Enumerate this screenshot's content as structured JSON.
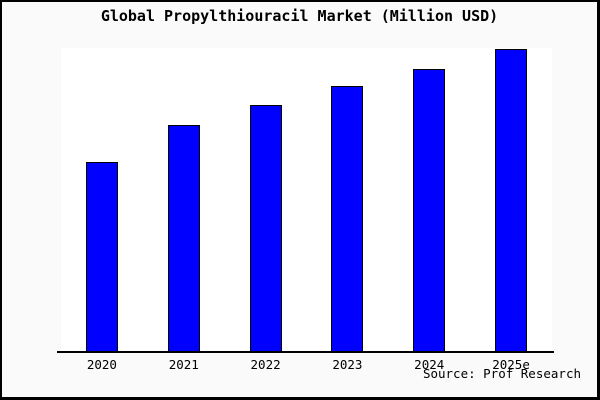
{
  "window": {
    "title": "Global Propylthiouracil Market (Million USD)"
  },
  "chart_data": {
    "type": "bar",
    "title": "Global Propylthiouracil Market (Million USD)",
    "categories": [
      "2020",
      "2021",
      "2022",
      "2023",
      "2024",
      "2025e"
    ],
    "values": [
      62.7,
      74.9,
      81.2,
      87.5,
      93.4,
      99.8
    ],
    "values_note": "y-axis has no tick labels; values are relative bar heights in % of plot height",
    "xlabel": "",
    "ylabel": "",
    "ylim": [
      0,
      100
    ],
    "grid": false,
    "legend": false,
    "bar_color": "#0000ff",
    "bar_border_color": "#000000"
  },
  "source": {
    "label": "Source: Prof Research"
  },
  "colors": {
    "background": "#fafafa",
    "plot_background": "#ffffff",
    "frame_border": "#000000",
    "bar": "#0000ff",
    "text": "#000000"
  }
}
